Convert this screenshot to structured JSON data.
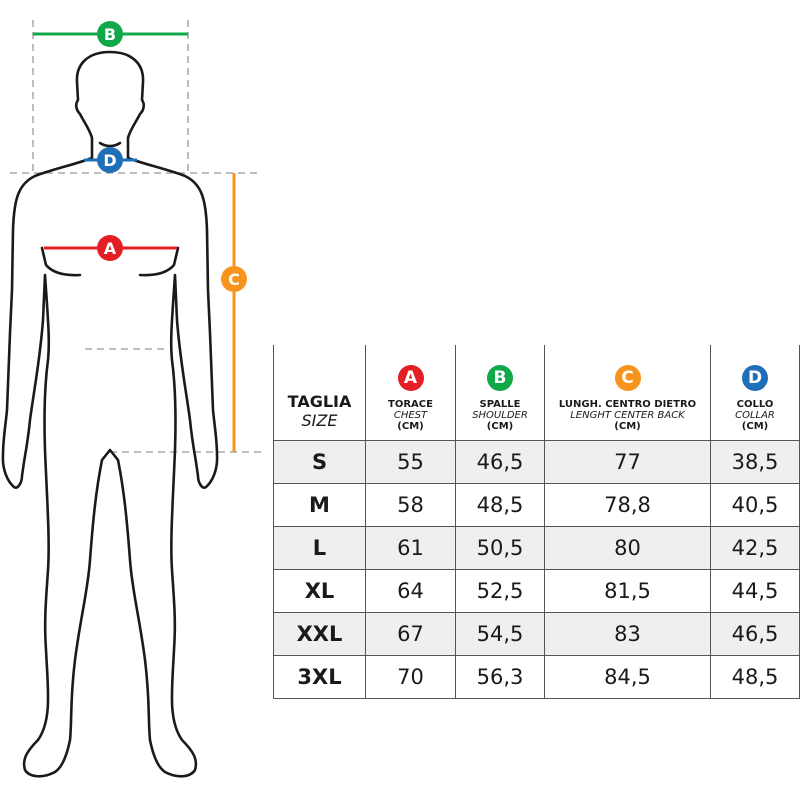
{
  "colors": {
    "A": "#e31e24",
    "B": "#11a84a",
    "C": "#f7941d",
    "D": "#1f6fb8"
  },
  "markers": {
    "A": "A",
    "B": "B",
    "C": "C",
    "D": "D"
  },
  "table": {
    "size_header": {
      "it": "TAGLIA",
      "en": "SIZE"
    },
    "columns": [
      {
        "marker": "A",
        "it": "TORACE",
        "en": "CHEST",
        "unit": "(CM)"
      },
      {
        "marker": "B",
        "it": "SPALLE",
        "en": "SHOULDER",
        "unit": "(CM)"
      },
      {
        "marker": "C",
        "it": "LUNGH. CENTRO DIETRO",
        "en": "LENGHT CENTER BACK",
        "unit": "(CM)"
      },
      {
        "marker": "D",
        "it": "COLLO",
        "en": "COLLAR",
        "unit": "(CM)"
      }
    ],
    "rows": [
      [
        "S",
        "55",
        "46,5",
        "77",
        "38,5"
      ],
      [
        "M",
        "58",
        "48,5",
        "78,8",
        "40,5"
      ],
      [
        "L",
        "61",
        "50,5",
        "80",
        "42,5"
      ],
      [
        "XL",
        "64",
        "52,5",
        "81,5",
        "44,5"
      ],
      [
        "XXL",
        "67",
        "54,5",
        "83",
        "46,5"
      ],
      [
        "3XL",
        "70",
        "56,3",
        "84,5",
        "48,5"
      ]
    ]
  }
}
